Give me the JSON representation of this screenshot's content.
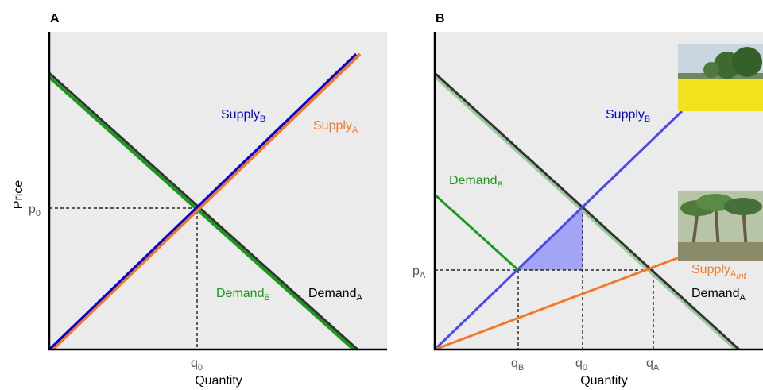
{
  "panels": [
    {
      "label": "A",
      "y_label": "Price",
      "x_label": "Quantity",
      "curve_labels": [
        {
          "text": "Supply",
          "sub": "B"
        },
        {
          "text": "Supply",
          "sub": "A"
        },
        {
          "text": "Demand",
          "sub": "B"
        },
        {
          "text": "Demand",
          "sub": "A"
        }
      ],
      "tick_labels": [
        {
          "text": "p",
          "sub": "0"
        },
        {
          "text": "q",
          "sub": "0"
        }
      ]
    },
    {
      "label": "B",
      "x_label": "Quantity",
      "curve_labels": [
        {
          "text": "Supply",
          "sub": "B"
        },
        {
          "text": "Demand",
          "sub": "B"
        },
        {
          "text": "Supply",
          "sub": "A",
          "subsub": "Int"
        },
        {
          "text": "Demand",
          "sub": "A"
        }
      ],
      "tick_labels": [
        {
          "text": "p",
          "sub": "A"
        },
        {
          "text": "q",
          "sub": "B"
        },
        {
          "text": "q",
          "sub": "0"
        },
        {
          "text": "q",
          "sub": "A"
        }
      ]
    }
  ]
}
